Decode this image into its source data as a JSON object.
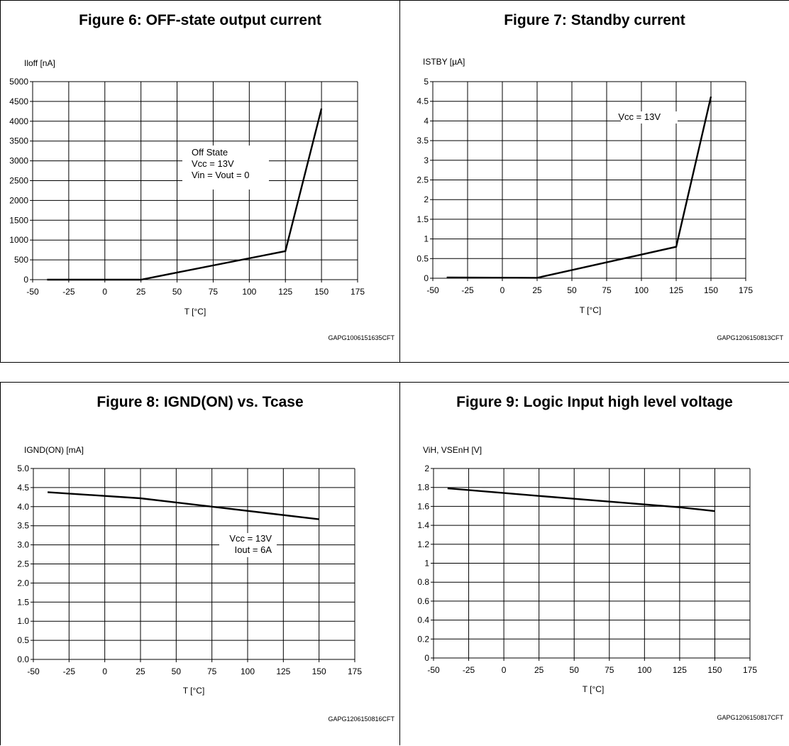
{
  "chart_data": [
    {
      "type": "line",
      "title": "Figure 6: OFF-state output current",
      "ylabel": "Iloff [nA]",
      "xlabel": "T [°C]",
      "xlim": [
        -50,
        175
      ],
      "ylim": [
        0,
        5000
      ],
      "xticks": [
        "-50",
        "-25",
        "0",
        "25",
        "50",
        "75",
        "100",
        "125",
        "150",
        "175"
      ],
      "yticks": [
        "0",
        "500",
        "1000",
        "1500",
        "2000",
        "2500",
        "3000",
        "3500",
        "4000",
        "4500",
        "5000"
      ],
      "grid": true,
      "annotation": [
        "Off State",
        "Vcc = 13V",
        "Vin = Vout = 0"
      ],
      "code": "GAPG1006151635CFT",
      "series": [
        {
          "x": [
            -40,
            25,
            125,
            150
          ],
          "y": [
            0,
            0,
            720,
            4320
          ]
        }
      ]
    },
    {
      "type": "line",
      "title": "Figure 7: Standby current",
      "ylabel": "ISTBY [µA]",
      "xlabel": "T [°C]",
      "xlim": [
        -50,
        175
      ],
      "ylim": [
        0,
        5
      ],
      "xticks": [
        "-50",
        "-25",
        "0",
        "25",
        "50",
        "75",
        "100",
        "125",
        "150",
        "175"
      ],
      "yticks": [
        "0",
        "0.5",
        "1",
        "1.5",
        "2",
        "2.5",
        "3",
        "3.5",
        "4",
        "4.5",
        "5"
      ],
      "grid": true,
      "annotation": [
        "Vcc = 13V"
      ],
      "code": "GAPG1206150813CFT",
      "series": [
        {
          "x": [
            -40,
            25,
            125,
            150
          ],
          "y": [
            0.02,
            0.01,
            0.8,
            4.62
          ]
        }
      ]
    },
    {
      "type": "line",
      "title": "Figure 8: IGND(ON) vs. Tcase",
      "ylabel": "IGND(ON) [mA]",
      "xlabel": "T [°C]",
      "xlim": [
        -50,
        175
      ],
      "ylim": [
        0,
        5
      ],
      "xticks": [
        "-50",
        "-25",
        "0",
        "25",
        "50",
        "75",
        "100",
        "125",
        "150",
        "175"
      ],
      "yticks": [
        "0.0",
        "0.5",
        "1.0",
        "1.5",
        "2.0",
        "2.5",
        "3.0",
        "3.5",
        "4.0",
        "4.5",
        "5.0"
      ],
      "grid": true,
      "annotation": [
        "Vcc = 13V",
        "Iout = 6A"
      ],
      "code": "GAPG1206150816CFT",
      "series": [
        {
          "x": [
            -40,
            25,
            75,
            150
          ],
          "y": [
            4.38,
            4.22,
            4.0,
            3.67
          ]
        }
      ]
    },
    {
      "type": "line",
      "title": "Figure 9: Logic Input high level voltage",
      "ylabel": "ViH, VSEnH [V]",
      "xlabel": "T [°C]",
      "xlim": [
        -50,
        175
      ],
      "ylim": [
        0,
        2
      ],
      "xticks": [
        "-50",
        "-25",
        "0",
        "25",
        "50",
        "75",
        "100",
        "125",
        "150",
        "175"
      ],
      "yticks": [
        "0",
        "0.2",
        "0.4",
        "0.6",
        "0.8",
        "1",
        "1.2",
        "1.4",
        "1.6",
        "1.8",
        "2"
      ],
      "grid": true,
      "annotation": [],
      "code": "GAPG1206150817CFT",
      "series": [
        {
          "x": [
            -40,
            25,
            125,
            150
          ],
          "y": [
            1.79,
            1.71,
            1.59,
            1.55
          ]
        }
      ]
    }
  ]
}
